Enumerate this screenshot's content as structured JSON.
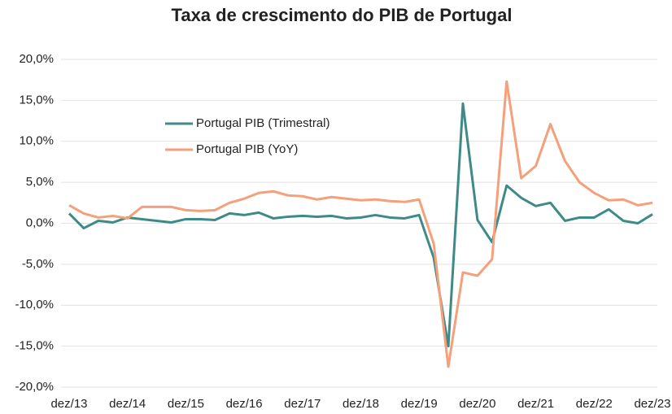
{
  "chart_data": {
    "type": "line",
    "title": "Taxa de crescimento do PIB de Portugal",
    "categories": [
      "dez/13",
      null,
      null,
      null,
      "dez/14",
      null,
      null,
      null,
      "dez/15",
      null,
      null,
      null,
      "dez/16",
      null,
      null,
      null,
      "dez/17",
      null,
      null,
      null,
      "dez/18",
      null,
      null,
      null,
      "dez/19",
      null,
      null,
      null,
      "dez/20",
      null,
      null,
      null,
      "dez/21",
      null,
      null,
      null,
      "dez/22",
      null,
      null,
      null,
      "dez/23"
    ],
    "series": [
      {
        "name": "Portugal PIB (Trimestral)",
        "color": "#3e8a88",
        "values": [
          1.2,
          -0.6,
          0.3,
          0.1,
          0.7,
          0.5,
          0.3,
          0.1,
          0.5,
          0.5,
          0.4,
          1.2,
          1.0,
          1.3,
          0.6,
          0.8,
          0.9,
          0.8,
          0.9,
          0.6,
          0.7,
          1.0,
          0.7,
          0.6,
          1.0,
          -4.2,
          -15.0,
          14.6,
          0.4,
          -2.3,
          4.6,
          3.1,
          2.1,
          2.5,
          0.3,
          0.7,
          0.7,
          1.7,
          0.3,
          0.0,
          1.1
        ]
      },
      {
        "name": "Portugal PIB (YoY)",
        "color": "#f5a07a",
        "values": [
          2.2,
          1.2,
          0.7,
          0.9,
          0.6,
          2.0,
          2.0,
          2.0,
          1.6,
          1.5,
          1.6,
          2.5,
          3.0,
          3.7,
          3.9,
          3.4,
          3.3,
          2.9,
          3.2,
          3.0,
          2.8,
          2.9,
          2.7,
          2.6,
          2.9,
          -2.5,
          -17.5,
          -6.0,
          -6.4,
          -4.4,
          17.3,
          5.5,
          7.0,
          12.1,
          7.6,
          5.0,
          3.7,
          2.8,
          2.9,
          2.2,
          2.5
        ]
      }
    ],
    "ylim": [
      -20,
      20
    ],
    "yticks": [
      {
        "value": -20,
        "label": "-20,0%"
      },
      {
        "value": -15,
        "label": "-15,0%"
      },
      {
        "value": -10,
        "label": "-10,0%"
      },
      {
        "value": -5,
        "label": "-5,0%"
      },
      {
        "value": 0,
        "label": "0,0%"
      },
      {
        "value": 5,
        "label": "5,0%"
      },
      {
        "value": 10,
        "label": "10,0%"
      },
      {
        "value": 15,
        "label": "15,0%"
      },
      {
        "value": 20,
        "label": "20,0%"
      }
    ],
    "grid": true
  }
}
